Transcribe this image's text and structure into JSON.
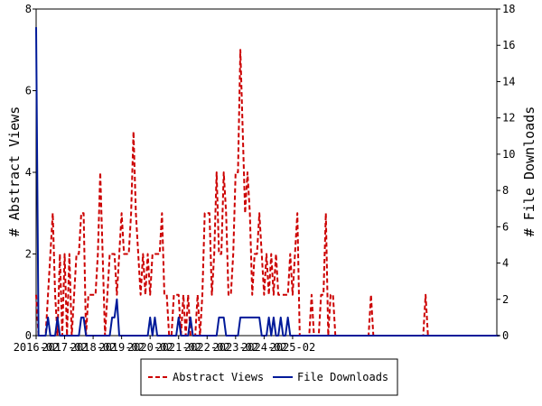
{
  "chart_data": {
    "type": "line",
    "title": "",
    "xlabel": "",
    "ylabel_left": "# Abstract Views",
    "ylabel_right": "# File Downloads",
    "x_tick_labels": [
      "2016-02",
      "2017-02",
      "2018-02",
      "2019-02",
      "2020-02",
      "2021-02",
      "2022-02",
      "2023-02",
      "2024-02",
      "2025-02"
    ],
    "x_start": "2016-02",
    "ylim_left": [
      0,
      8
    ],
    "yticks_left": [
      0,
      2,
      4,
      6,
      8
    ],
    "ylim_right": [
      0,
      18
    ],
    "yticks_right": [
      0,
      2,
      4,
      6,
      8,
      10,
      12,
      14,
      16,
      18
    ],
    "grid": false,
    "legend_position": "bottom-center",
    "series": [
      {
        "name": "Abstract Views",
        "axis": "left",
        "color": "#cc0000",
        "style": "dashed",
        "values": [
          1,
          0,
          0,
          0,
          0,
          1,
          2,
          3,
          1,
          0,
          2,
          0,
          2,
          0,
          2,
          0,
          1,
          2,
          2,
          3,
          3,
          0,
          1,
          1,
          1,
          1,
          2,
          4,
          2,
          0,
          1,
          2,
          2,
          2,
          1,
          2,
          3,
          2,
          2,
          2,
          3,
          5,
          3,
          2,
          1,
          2,
          1,
          2,
          1,
          2,
          2,
          2,
          2,
          3,
          1,
          1,
          0,
          0,
          1,
          1,
          1,
          0,
          1,
          0,
          1,
          0,
          0,
          0,
          1,
          0,
          1,
          3,
          3,
          3,
          1,
          2,
          4,
          2,
          2,
          4,
          3,
          1,
          1,
          2,
          4,
          4,
          7,
          5,
          3,
          4,
          3,
          1,
          2,
          2,
          3,
          2,
          1,
          2,
          1,
          2,
          1,
          2,
          1,
          1,
          1,
          1,
          1,
          2,
          1,
          2,
          3,
          0,
          0,
          0,
          0,
          0,
          1,
          0,
          0,
          0,
          1,
          1,
          3,
          0,
          1,
          1,
          0,
          0,
          0,
          0,
          0,
          0,
          0,
          0,
          0,
          0,
          0,
          0,
          0,
          0,
          0,
          1,
          0,
          0,
          0,
          0,
          0,
          0,
          0,
          0,
          0,
          0,
          0,
          0,
          0,
          0,
          0,
          0,
          0,
          0,
          0,
          0,
          0,
          0,
          1,
          0,
          0,
          0,
          0,
          0,
          0,
          0,
          0,
          0,
          0,
          0,
          0,
          0,
          0,
          0,
          0,
          0,
          0,
          0,
          0,
          0,
          0,
          0,
          0,
          0,
          0,
          0,
          0,
          0,
          0
        ]
      },
      {
        "name": "File Downloads",
        "axis": "right",
        "color": "#001a99",
        "style": "solid",
        "values": [
          17,
          0,
          0,
          0,
          0,
          1,
          0,
          0,
          0,
          1,
          0,
          0,
          0,
          0,
          0,
          0,
          0,
          0,
          0,
          1,
          1,
          0,
          0,
          0,
          0,
          0,
          0,
          0,
          0,
          0,
          0,
          0,
          1,
          1,
          2,
          0,
          0,
          0,
          0,
          0,
          0,
          0,
          0,
          0,
          0,
          0,
          0,
          0,
          1,
          0,
          1,
          0,
          0,
          0,
          0,
          0,
          0,
          0,
          0,
          0,
          1,
          0,
          0,
          0,
          0,
          1,
          0,
          0,
          0,
          0,
          0,
          0,
          0,
          0,
          0,
          0,
          0,
          1,
          1,
          1,
          0,
          0,
          0,
          0,
          0,
          0,
          1,
          1,
          1,
          1,
          1,
          1,
          1,
          1,
          1,
          0,
          0,
          0,
          1,
          0,
          1,
          0,
          0,
          1,
          0,
          0,
          1,
          0,
          0,
          0,
          0,
          0,
          0,
          0,
          0,
          0,
          0,
          0,
          0,
          0,
          0,
          0,
          0,
          0,
          0,
          0,
          0,
          0,
          0,
          0,
          0,
          0,
          0,
          0,
          0,
          0,
          0,
          0,
          0,
          0,
          0,
          0,
          0,
          0,
          0,
          0,
          0,
          0,
          0,
          0,
          0,
          0,
          0,
          0,
          0,
          0,
          0,
          0,
          0,
          0,
          0,
          0,
          0,
          0,
          0,
          0,
          0,
          0,
          0,
          0,
          0,
          0,
          0,
          0,
          0,
          0,
          0,
          0,
          0,
          0,
          0,
          0,
          0,
          0,
          0,
          0,
          0,
          0,
          0,
          0,
          0,
          0,
          0,
          0,
          0,
          0
        ]
      }
    ]
  }
}
